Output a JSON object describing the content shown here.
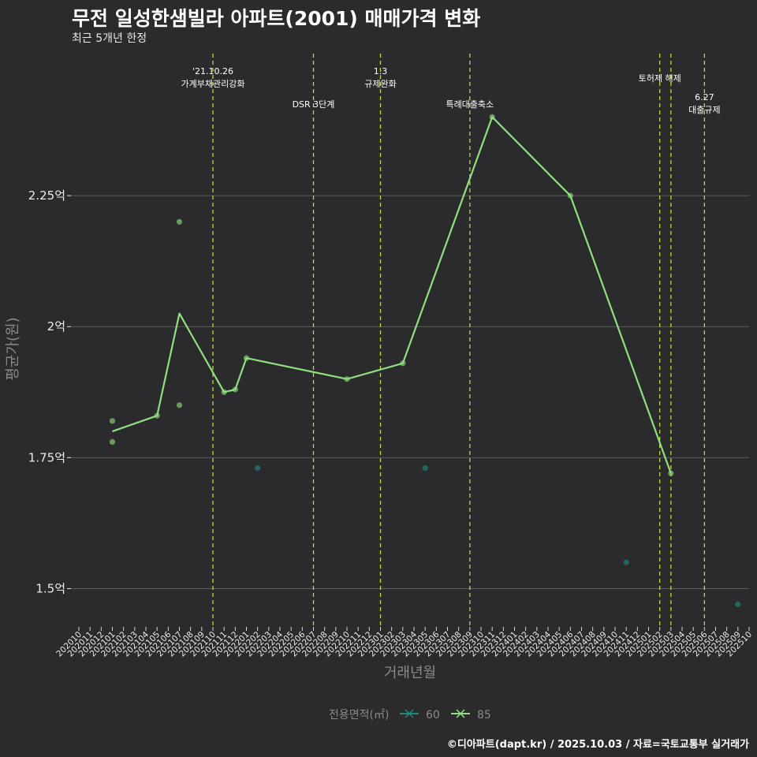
{
  "title": "무전 일성한샘빌라 아파트(2001) 매매가격 변화",
  "subtitle": "최근 5개년 한정",
  "caption": "©디아파트(dapt.kr) / 2025.10.03 / 자료=국토교통부 실거래가",
  "colors": {
    "background": "#2b2a2c",
    "grid": "#5d5d5f",
    "series_60": "#1f8a80",
    "series_85": "#90e07f",
    "event_line": "#c8d43a"
  },
  "chart_data": {
    "type": "line",
    "xlabel": "거래년월",
    "ylabel": "평균가(원)",
    "ylim": [
      1.43,
      2.53
    ],
    "yticks": [
      {
        "value": 1.5,
        "label": "1.5억"
      },
      {
        "value": 1.75,
        "label": "1.75억"
      },
      {
        "value": 2.0,
        "label": "2억"
      },
      {
        "value": 2.25,
        "label": "2.25억"
      }
    ],
    "x_categories": [
      "202010",
      "202011",
      "202012",
      "202101",
      "202102",
      "202103",
      "202104",
      "202105",
      "202106",
      "202107",
      "202108",
      "202109",
      "202110",
      "202111",
      "202112",
      "202201",
      "202202",
      "202203",
      "202204",
      "202205",
      "202206",
      "202207",
      "202208",
      "202209",
      "202210",
      "202211",
      "202212",
      "202301",
      "202302",
      "202303",
      "202304",
      "202305",
      "202306",
      "202307",
      "202308",
      "202309",
      "202310",
      "202311",
      "202312",
      "202401",
      "202402",
      "202403",
      "202404",
      "202405",
      "202406",
      "202407",
      "202408",
      "202409",
      "202410",
      "202411",
      "202412",
      "202501",
      "202502",
      "202503",
      "202504",
      "202505",
      "202506",
      "202507",
      "202508",
      "202509",
      "202510"
    ],
    "legend_title": "전용면적(㎡)",
    "legend_position": "bottom",
    "series": [
      {
        "name": "60",
        "color_key": "series_60",
        "line": [],
        "points": [
          {
            "x": "202202",
            "y": 1.73
          },
          {
            "x": "202305",
            "y": 1.73
          },
          {
            "x": "202411",
            "y": 1.55
          },
          {
            "x": "202509",
            "y": 1.47
          }
        ]
      },
      {
        "name": "85",
        "color_key": "series_85",
        "line": [
          {
            "x": "202101",
            "y": 1.8
          },
          {
            "x": "202105",
            "y": 1.83
          },
          {
            "x": "202107",
            "y": 2.025
          },
          {
            "x": "202111",
            "y": 1.875
          },
          {
            "x": "202112",
            "y": 1.88
          },
          {
            "x": "202201",
            "y": 1.94
          },
          {
            "x": "202210",
            "y": 1.9
          },
          {
            "x": "202303",
            "y": 1.93
          },
          {
            "x": "202311",
            "y": 2.4
          },
          {
            "x": "202406",
            "y": 2.25
          },
          {
            "x": "202503",
            "y": 1.72
          }
        ],
        "points": [
          {
            "x": "202101",
            "y": 1.82
          },
          {
            "x": "202101",
            "y": 1.78
          },
          {
            "x": "202105",
            "y": 1.83
          },
          {
            "x": "202107",
            "y": 2.2
          },
          {
            "x": "202107",
            "y": 1.85
          },
          {
            "x": "202111",
            "y": 1.875
          },
          {
            "x": "202112",
            "y": 1.88
          },
          {
            "x": "202201",
            "y": 1.94
          },
          {
            "x": "202210",
            "y": 1.9
          },
          {
            "x": "202303",
            "y": 1.93
          },
          {
            "x": "202311",
            "y": 2.4
          },
          {
            "x": "202406",
            "y": 2.25
          },
          {
            "x": "202503",
            "y": 1.72
          }
        ]
      }
    ],
    "events": [
      {
        "x": "202110",
        "lines": [
          "'21.10.26",
          "가계부채관리강화"
        ],
        "level": "high"
      },
      {
        "x": "202207",
        "lines": [
          "DSR 3단계"
        ],
        "level": "low"
      },
      {
        "x": "202301",
        "lines": [
          "1.3",
          "규제완화"
        ],
        "level": "high"
      },
      {
        "x": "202309",
        "lines": [
          "특례대출축소"
        ],
        "level": "low"
      },
      {
        "x": "202502",
        "lines": [
          "토허제 해제"
        ],
        "level": "mid"
      },
      {
        "x": "202503",
        "lines": [],
        "level": "none"
      },
      {
        "x": "202506",
        "lines": [
          "6.27",
          "대출규제"
        ],
        "level": "lower"
      }
    ]
  }
}
